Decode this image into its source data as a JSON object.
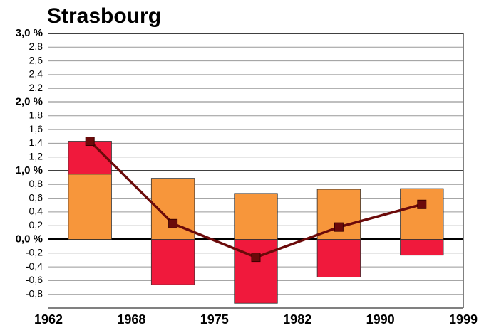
{
  "chart_data": {
    "type": "bar",
    "title": "Strasbourg",
    "boundaries": [
      1962,
      1968,
      1975,
      1982,
      1990,
      1999
    ],
    "series": [
      {
        "type": "bar",
        "color": "#f7963b",
        "values": [
          0.95,
          0.89,
          0.67,
          0.73,
          0.74
        ]
      },
      {
        "type": "bar",
        "color": "#f0193c",
        "values": [
          0.48,
          -0.66,
          -0.93,
          -0.55,
          -0.23
        ]
      },
      {
        "type": "line",
        "color": "#6b0a0a",
        "values": [
          1.43,
          0.23,
          -0.26,
          0.18,
          0.51
        ]
      }
    ],
    "ylim": [
      -1.0,
      3.0
    ],
    "major_yticks": [
      {
        "value": 0,
        "label": "0,0 %"
      },
      {
        "value": 1,
        "label": "1,0 %"
      },
      {
        "value": 2,
        "label": "2,0 %"
      },
      {
        "value": 3,
        "label": "3,0 %"
      }
    ],
    "yticks": [
      {
        "value": -0.8,
        "label": "-0,8"
      },
      {
        "value": -0.6,
        "label": "-0,6"
      },
      {
        "value": -0.4,
        "label": "-0,4"
      },
      {
        "value": -0.2,
        "label": "-0,2"
      },
      {
        "value": 0.2,
        "label": "0,2"
      },
      {
        "value": 0.4,
        "label": "0,4"
      },
      {
        "value": 0.6,
        "label": "0,6"
      },
      {
        "value": 0.8,
        "label": "0,8"
      },
      {
        "value": 1.2,
        "label": "1,2"
      },
      {
        "value": 1.4,
        "label": "1,4"
      },
      {
        "value": 1.6,
        "label": "1,6"
      },
      {
        "value": 1.8,
        "label": "1,8"
      },
      {
        "value": 2.2,
        "label": "2,2"
      },
      {
        "value": 2.4,
        "label": "2,4"
      },
      {
        "value": 2.6,
        "label": "2,6"
      },
      {
        "value": 2.8,
        "label": "2,8"
      }
    ],
    "grid": true
  }
}
